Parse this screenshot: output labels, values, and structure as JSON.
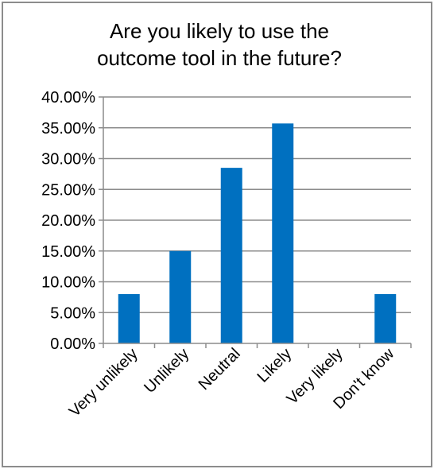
{
  "chart_data": {
    "type": "bar",
    "title_lines": [
      "Are you likely to use the",
      "outcome tool in the future?"
    ],
    "categories": [
      "Very unlikely",
      "Unlikely",
      "Neutral",
      "Likely",
      "Very likely",
      "Don't know"
    ],
    "values": [
      8.0,
      15.0,
      28.5,
      35.7,
      0.0,
      8.0
    ],
    "ylim": [
      0,
      40
    ],
    "yticks": [
      0,
      5,
      10,
      15,
      20,
      25,
      30,
      35,
      40
    ],
    "ytick_labels": [
      "0.00%",
      "5.00%",
      "10.00%",
      "15.00%",
      "20.00%",
      "25.00%",
      "30.00%",
      "35.00%",
      "40.00%"
    ],
    "grid": true,
    "legend": "none",
    "bar_color": "#0070c0",
    "grid_color": "#8c8c8c"
  }
}
